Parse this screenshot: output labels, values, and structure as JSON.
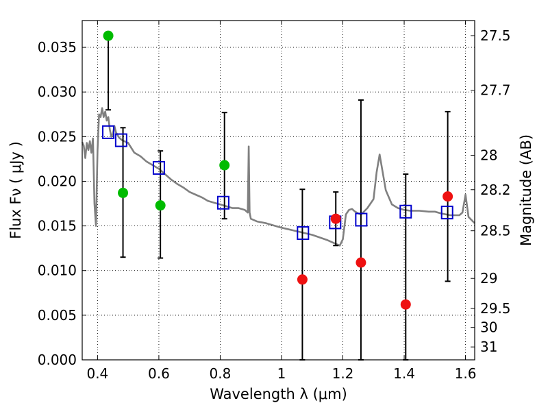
{
  "chart_data": {
    "type": "scatter",
    "title": "",
    "xlabel": "Wavelength  λ (μm)",
    "ylabel": "Flux  Fν  ( μJy )",
    "y2label": "Magnitude (AB)",
    "xlim": [
      0.35,
      1.63
    ],
    "ylim": [
      0.0,
      0.038
    ],
    "grid": true,
    "x_ticks": [
      {
        "value": 0.4,
        "label": "0.4"
      },
      {
        "value": 0.6,
        "label": "0.6"
      },
      {
        "value": 0.8,
        "label": "0.8"
      },
      {
        "value": 1.0,
        "label": "1"
      },
      {
        "value": 1.2,
        "label": "1.2"
      },
      {
        "value": 1.4,
        "label": "1.4"
      },
      {
        "value": 1.6,
        "label": "1.6"
      }
    ],
    "y_ticks": [
      {
        "value": 0.0,
        "label": "0.000"
      },
      {
        "value": 0.005,
        "label": "0.005"
      },
      {
        "value": 0.01,
        "label": "0.010"
      },
      {
        "value": 0.015,
        "label": "0.015"
      },
      {
        "value": 0.02,
        "label": "0.020"
      },
      {
        "value": 0.025,
        "label": "0.025"
      },
      {
        "value": 0.03,
        "label": "0.030"
      },
      {
        "value": 0.035,
        "label": "0.035"
      }
    ],
    "y2_ticks": [
      {
        "value": 27.5,
        "label": "27.5"
      },
      {
        "value": 27.7,
        "label": "27.7"
      },
      {
        "value": 28,
        "label": "28"
      },
      {
        "value": 28.2,
        "label": "28.2"
      },
      {
        "value": 28.5,
        "label": "28.5"
      },
      {
        "value": 29,
        "label": "29"
      },
      {
        "value": 29.5,
        "label": "29.5"
      },
      {
        "value": 30,
        "label": "30"
      },
      {
        "value": 31,
        "label": "31"
      }
    ],
    "observed_green": [
      {
        "x": 0.435,
        "y": 0.0363,
        "err_lo": 0.028,
        "err_hi": 0.0363
      },
      {
        "x": 0.483,
        "y": 0.0187,
        "err_lo": 0.0115,
        "err_hi": 0.026
      },
      {
        "x": 0.605,
        "y": 0.0173,
        "err_lo": 0.0114,
        "err_hi": 0.0234
      },
      {
        "x": 0.814,
        "y": 0.0218,
        "err_lo": 0.0158,
        "err_hi": 0.0277
      }
    ],
    "observed_red": [
      {
        "x": 1.068,
        "y": 0.009,
        "err_lo": 0.0,
        "err_hi": 0.0191
      },
      {
        "x": 1.177,
        "y": 0.0158,
        "err_lo": 0.0128,
        "err_hi": 0.0188
      },
      {
        "x": 1.259,
        "y": 0.0109,
        "err_lo": 0.0,
        "err_hi": 0.0291
      },
      {
        "x": 1.405,
        "y": 0.0062,
        "err_lo": 0.0,
        "err_hi": 0.0208
      },
      {
        "x": 1.542,
        "y": 0.0183,
        "err_lo": 0.0088,
        "err_hi": 0.0278
      }
    ],
    "model_photometry": [
      {
        "x": 0.435,
        "y": 0.0255
      },
      {
        "x": 0.477,
        "y": 0.0246
      },
      {
        "x": 0.6,
        "y": 0.0215
      },
      {
        "x": 0.81,
        "y": 0.0176
      },
      {
        "x": 1.07,
        "y": 0.0142
      },
      {
        "x": 1.175,
        "y": 0.0154
      },
      {
        "x": 1.26,
        "y": 0.0157
      },
      {
        "x": 1.405,
        "y": 0.0166
      },
      {
        "x": 1.54,
        "y": 0.0165
      }
    ],
    "sed_model": {
      "x": [
        0.35,
        0.355,
        0.36,
        0.365,
        0.37,
        0.375,
        0.38,
        0.385,
        0.39,
        0.395,
        0.4,
        0.405,
        0.41,
        0.415,
        0.42,
        0.425,
        0.43,
        0.435,
        0.44,
        0.445,
        0.45,
        0.455,
        0.46,
        0.47,
        0.48,
        0.5,
        0.52,
        0.54,
        0.56,
        0.58,
        0.6,
        0.62,
        0.64,
        0.66,
        0.68,
        0.7,
        0.72,
        0.74,
        0.76,
        0.78,
        0.8,
        0.82,
        0.84,
        0.86,
        0.88,
        0.89,
        0.893,
        0.896,
        0.9,
        0.92,
        0.95,
        1.0,
        1.05,
        1.1,
        1.15,
        1.19,
        1.2,
        1.21,
        1.22,
        1.23,
        1.24,
        1.25,
        1.26,
        1.28,
        1.3,
        1.31,
        1.32,
        1.34,
        1.36,
        1.38,
        1.4,
        1.42,
        1.45,
        1.48,
        1.5,
        1.52,
        1.55,
        1.57,
        1.58,
        1.59,
        1.6,
        1.61,
        1.63
      ],
      "y": [
        0.0244,
        0.024,
        0.0226,
        0.0243,
        0.0235,
        0.0245,
        0.0232,
        0.0248,
        0.0175,
        0.015,
        0.0235,
        0.0275,
        0.0272,
        0.0282,
        0.0272,
        0.0278,
        0.0268,
        0.0272,
        0.0258,
        0.025,
        0.0253,
        0.0262,
        0.0255,
        0.0249,
        0.0246,
        0.0243,
        0.0232,
        0.0228,
        0.0222,
        0.0218,
        0.0214,
        0.0208,
        0.0202,
        0.0197,
        0.0193,
        0.0188,
        0.0185,
        0.0182,
        0.0178,
        0.0176,
        0.0174,
        0.0172,
        0.017,
        0.017,
        0.0168,
        0.0165,
        0.0239,
        0.0165,
        0.0158,
        0.0155,
        0.0153,
        0.0148,
        0.0144,
        0.014,
        0.0134,
        0.0128,
        0.0135,
        0.0163,
        0.0168,
        0.0169,
        0.0166,
        0.0164,
        0.0163,
        0.017,
        0.018,
        0.021,
        0.023,
        0.019,
        0.0174,
        0.017,
        0.0168,
        0.0167,
        0.0167,
        0.0166,
        0.0166,
        0.0164,
        0.0162,
        0.0162,
        0.0162,
        0.0165,
        0.0185,
        0.016,
        0.0153
      ]
    },
    "colors": {
      "green": "#00bb00",
      "red": "#ee1111",
      "model_box": "#0000cc",
      "sed_line": "#808080",
      "errorbar": "#000000",
      "grid": "#000000"
    }
  }
}
